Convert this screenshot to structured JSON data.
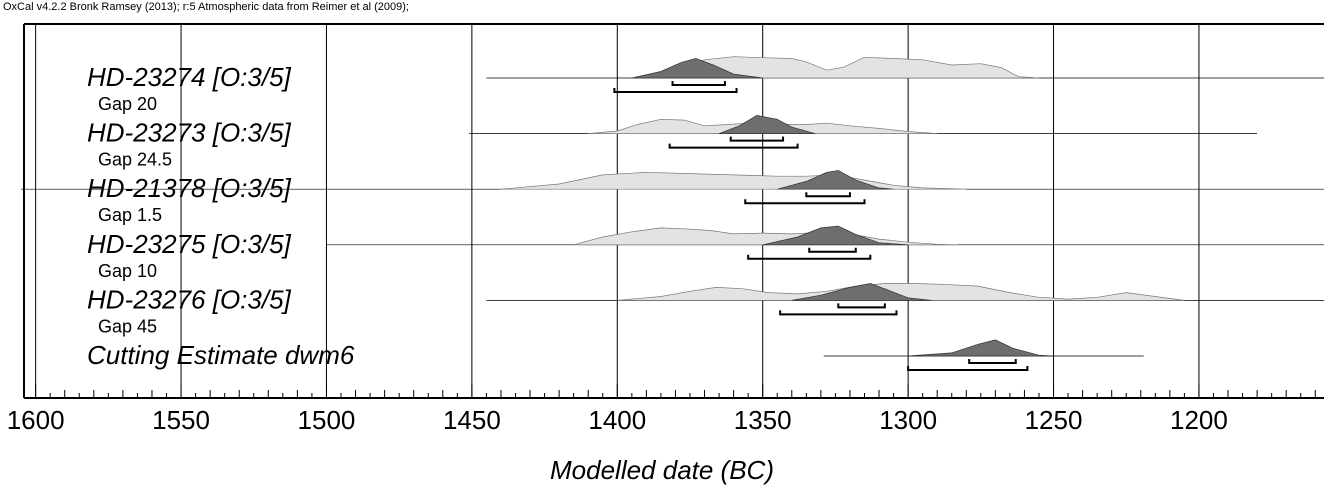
{
  "chart_data": {
    "type": "area",
    "attribution": "OxCal v4.2.2 Bronk Ramsey (2013); r:5 Atmospheric data from Reimer et al (2009);",
    "xlabel": "Modelled date (BC)",
    "xlim": [
      1604,
      1157
    ],
    "x_ticks": [
      1600,
      1550,
      1500,
      1450,
      1400,
      1350,
      1300,
      1250,
      1200
    ],
    "samples": [
      {
        "name": "HD-23274 [O:3/5]",
        "gap_label": "Gap 20",
        "line_range": [
          1445,
          1155
        ],
        "unmodelled": [
          [
            1390,
            0
          ],
          [
            1380,
            0.3
          ],
          [
            1370,
            0.7
          ],
          [
            1360,
            0.82
          ],
          [
            1350,
            0.78
          ],
          [
            1340,
            0.75
          ],
          [
            1335,
            0.62
          ],
          [
            1328,
            0.3
          ],
          [
            1322,
            0.42
          ],
          [
            1315,
            0.8
          ],
          [
            1305,
            0.75
          ],
          [
            1295,
            0.7
          ],
          [
            1285,
            0.5
          ],
          [
            1275,
            0.55
          ],
          [
            1268,
            0.4
          ],
          [
            1262,
            0.05
          ],
          [
            1255,
            0
          ]
        ],
        "posterior": [
          [
            1395,
            0
          ],
          [
            1385,
            0.25
          ],
          [
            1378,
            0.6
          ],
          [
            1373,
            0.75
          ],
          [
            1367,
            0.5
          ],
          [
            1360,
            0.15
          ],
          [
            1350,
            0
          ]
        ],
        "range_68": [
          1381,
          1363
        ],
        "range_95": [
          1401,
          1359
        ]
      },
      {
        "name": "HD-23273 [O:3/5]",
        "gap_label": "Gap 24.5",
        "line_range": [
          1451,
          1180
        ],
        "unmodelled": [
          [
            1410,
            0
          ],
          [
            1400,
            0.1
          ],
          [
            1393,
            0.35
          ],
          [
            1385,
            0.55
          ],
          [
            1377,
            0.52
          ],
          [
            1370,
            0.3
          ],
          [
            1362,
            0.35
          ],
          [
            1352,
            0.42
          ],
          [
            1345,
            0.36
          ],
          [
            1335,
            0.35
          ],
          [
            1328,
            0.4
          ],
          [
            1320,
            0.3
          ],
          [
            1310,
            0.2
          ],
          [
            1300,
            0.08
          ],
          [
            1290,
            0
          ]
        ],
        "posterior": [
          [
            1365,
            0
          ],
          [
            1358,
            0.3
          ],
          [
            1352,
            0.7
          ],
          [
            1345,
            0.55
          ],
          [
            1340,
            0.25
          ],
          [
            1332,
            0
          ]
        ],
        "range_68": [
          1361,
          1343
        ],
        "range_95": [
          1382,
          1338
        ]
      },
      {
        "name": "HD-21378 [O:3/5]",
        "gap_label": "Gap 1.5",
        "line_range": [
          1605,
          1155
        ],
        "unmodelled": [
          [
            1440,
            0
          ],
          [
            1420,
            0.2
          ],
          [
            1405,
            0.55
          ],
          [
            1390,
            0.65
          ],
          [
            1375,
            0.6
          ],
          [
            1360,
            0.55
          ],
          [
            1345,
            0.5
          ],
          [
            1335,
            0.5
          ],
          [
            1325,
            0.55
          ],
          [
            1315,
            0.35
          ],
          [
            1305,
            0.15
          ],
          [
            1295,
            0.05
          ],
          [
            1280,
            0
          ]
        ],
        "posterior": [
          [
            1345,
            0
          ],
          [
            1335,
            0.3
          ],
          [
            1328,
            0.65
          ],
          [
            1324,
            0.72
          ],
          [
            1318,
            0.35
          ],
          [
            1310,
            0.05
          ],
          [
            1305,
            0
          ]
        ],
        "range_68": [
          1335,
          1320
        ],
        "range_95": [
          1356,
          1315
        ]
      },
      {
        "name": "HD-23275 [O:3/5]",
        "gap_label": "Gap 10",
        "line_range": [
          1500,
          1155
        ],
        "unmodelled": [
          [
            1415,
            0
          ],
          [
            1405,
            0.3
          ],
          [
            1395,
            0.5
          ],
          [
            1385,
            0.65
          ],
          [
            1378,
            0.62
          ],
          [
            1368,
            0.55
          ],
          [
            1360,
            0.42
          ],
          [
            1350,
            0.45
          ],
          [
            1340,
            0.42
          ],
          [
            1330,
            0.48
          ],
          [
            1320,
            0.42
          ],
          [
            1310,
            0.22
          ],
          [
            1300,
            0.1
          ],
          [
            1290,
            0.02
          ],
          [
            1283,
            0
          ]
        ],
        "posterior": [
          [
            1350,
            0
          ],
          [
            1338,
            0.3
          ],
          [
            1330,
            0.65
          ],
          [
            1324,
            0.72
          ],
          [
            1318,
            0.4
          ],
          [
            1310,
            0.08
          ],
          [
            1300,
            0
          ]
        ],
        "range_68": [
          1334,
          1318
        ],
        "range_95": [
          1355,
          1313
        ]
      },
      {
        "name": "HD-23276 [O:3/5]",
        "gap_label": "Gap 45",
        "line_range": [
          1445,
          1155
        ],
        "unmodelled": [
          [
            1400,
            0
          ],
          [
            1385,
            0.15
          ],
          [
            1375,
            0.35
          ],
          [
            1366,
            0.5
          ],
          [
            1357,
            0.45
          ],
          [
            1348,
            0.3
          ],
          [
            1338,
            0.25
          ],
          [
            1328,
            0.35
          ],
          [
            1318,
            0.55
          ],
          [
            1308,
            0.65
          ],
          [
            1298,
            0.65
          ],
          [
            1288,
            0.62
          ],
          [
            1276,
            0.55
          ],
          [
            1265,
            0.3
          ],
          [
            1255,
            0.12
          ],
          [
            1245,
            0.05
          ],
          [
            1235,
            0.12
          ],
          [
            1225,
            0.3
          ],
          [
            1215,
            0.15
          ],
          [
            1205,
            0
          ]
        ],
        "posterior": [
          [
            1340,
            0
          ],
          [
            1330,
            0.2
          ],
          [
            1320,
            0.5
          ],
          [
            1313,
            0.65
          ],
          [
            1307,
            0.4
          ],
          [
            1300,
            0.1
          ],
          [
            1292,
            0
          ]
        ],
        "range_68": [
          1324,
          1308
        ],
        "range_95": [
          1344,
          1304
        ]
      },
      {
        "name": "Cutting Estimate dwm6",
        "gap_label": "",
        "line_range": [
          1329,
          1219
        ],
        "unmodelled": [],
        "posterior": [
          [
            1300,
            0
          ],
          [
            1285,
            0.12
          ],
          [
            1276,
            0.45
          ],
          [
            1270,
            0.62
          ],
          [
            1264,
            0.3
          ],
          [
            1255,
            0.03
          ],
          [
            1250,
            0
          ]
        ],
        "range_68": [
          1279,
          1263
        ],
        "range_95": [
          1300,
          1259
        ]
      }
    ]
  }
}
